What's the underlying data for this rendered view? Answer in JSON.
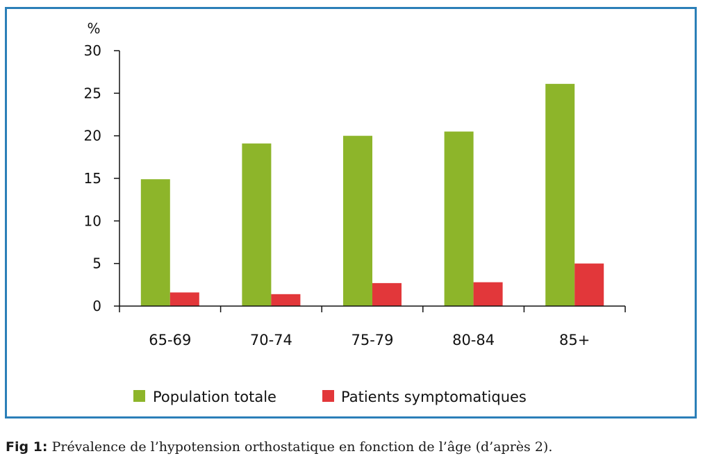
{
  "chart_data": {
    "type": "bar",
    "y_unit": "%",
    "categories": [
      "65-69",
      "70-74",
      "75-79",
      "80-84",
      "85+"
    ],
    "series": [
      {
        "name": "Population totale",
        "color": "#8db52a",
        "values": [
          14.9,
          19.1,
          20.0,
          20.5,
          26.1
        ]
      },
      {
        "name": "Patients symptomatiques",
        "color": "#e2373a",
        "values": [
          1.6,
          1.4,
          2.7,
          2.8,
          5.0
        ]
      }
    ],
    "ylim": [
      0,
      30
    ],
    "yticks": [
      "0",
      "5",
      "10",
      "15",
      "20",
      "25",
      "30"
    ],
    "grid": false,
    "legend_position": "bottom"
  },
  "caption": {
    "label": "Fig 1:",
    "text": " Prévalence de l’hypotension orthostatique en fonction de l’âge (d’après 2)."
  }
}
